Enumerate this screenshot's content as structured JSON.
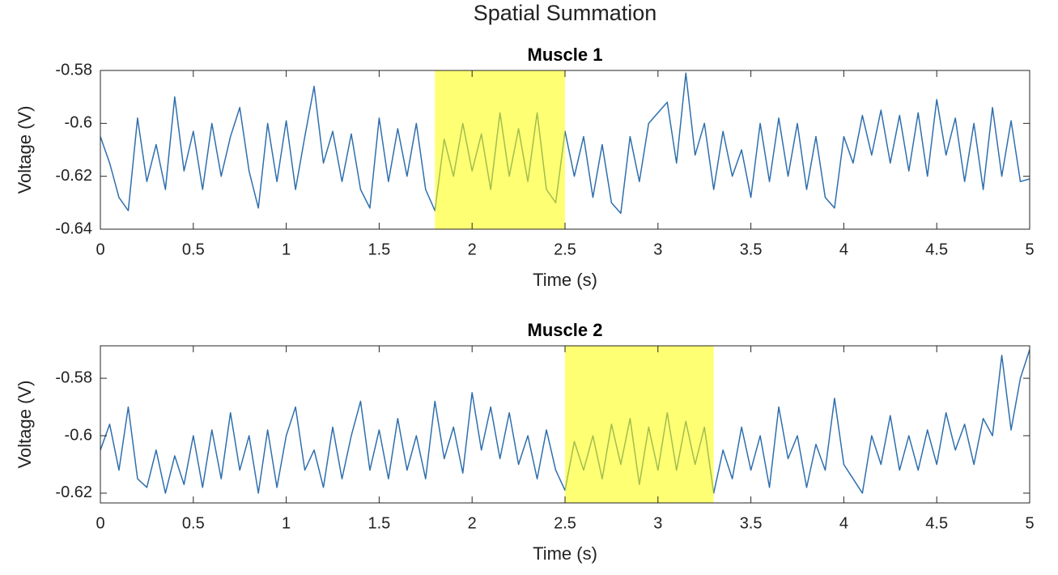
{
  "title": "Spatial Summation",
  "chart_data": [
    {
      "type": "line",
      "title": "Muscle 1",
      "xlabel": "Time (s)",
      "ylabel": "Voltage (V)",
      "xlim": [
        0,
        5
      ],
      "xticks": [
        0,
        0.5,
        1,
        1.5,
        2,
        2.5,
        3,
        3.5,
        4,
        4.5,
        5
      ],
      "ylim": [
        -0.64,
        -0.58
      ],
      "yticks": [
        -0.64,
        -0.62,
        -0.6,
        -0.58
      ],
      "highlight": [
        1.8,
        2.5
      ],
      "highlight_color": "#ffff00",
      "x": [
        0,
        0.05,
        0.1,
        0.15,
        0.2,
        0.25,
        0.3,
        0.35,
        0.4,
        0.45,
        0.5,
        0.55,
        0.6,
        0.65,
        0.7,
        0.75,
        0.8,
        0.85,
        0.9,
        0.95,
        1,
        1.05,
        1.1,
        1.15,
        1.2,
        1.25,
        1.3,
        1.35,
        1.4,
        1.45,
        1.5,
        1.55,
        1.6,
        1.65,
        1.7,
        1.75,
        1.8,
        1.85,
        1.9,
        1.95,
        2,
        2.05,
        2.1,
        2.15,
        2.2,
        2.25,
        2.3,
        2.35,
        2.4,
        2.45,
        2.5,
        2.55,
        2.6,
        2.65,
        2.7,
        2.75,
        2.8,
        2.85,
        2.9,
        2.95,
        3,
        3.05,
        3.1,
        3.15,
        3.2,
        3.25,
        3.3,
        3.35,
        3.4,
        3.45,
        3.5,
        3.55,
        3.6,
        3.65,
        3.7,
        3.75,
        3.8,
        3.85,
        3.9,
        3.95,
        4,
        4.05,
        4.1,
        4.15,
        4.2,
        4.25,
        4.3,
        4.35,
        4.4,
        4.45,
        4.5,
        4.55,
        4.6,
        4.65,
        4.7,
        4.75,
        4.8,
        4.85,
        4.9,
        4.95,
        5
      ],
      "series": [
        {
          "color": "#2f6fad",
          "values": [
            -0.605,
            -0.615,
            -0.628,
            -0.633,
            -0.598,
            -0.622,
            -0.608,
            -0.625,
            -0.59,
            -0.618,
            -0.603,
            -0.625,
            -0.6,
            -0.62,
            -0.605,
            -0.594,
            -0.618,
            -0.632,
            -0.6,
            -0.622,
            -0.599,
            -0.625,
            -0.605,
            -0.586,
            -0.615,
            -0.603,
            -0.622,
            -0.604,
            -0.625,
            -0.632,
            -0.598,
            -0.622,
            -0.602,
            -0.62,
            -0.6,
            -0.625,
            -0.633,
            -0.606,
            -0.62,
            -0.6,
            -0.618,
            -0.604,
            -0.625,
            -0.596,
            -0.62,
            -0.602,
            -0.622,
            -0.596,
            -0.625,
            -0.63,
            -0.603,
            -0.62,
            -0.605,
            -0.628,
            -0.608,
            -0.63,
            -0.634,
            -0.605,
            -0.622,
            -0.6,
            -0.596,
            -0.592,
            -0.615,
            -0.581,
            -0.612,
            -0.6,
            -0.625,
            -0.603,
            -0.62,
            -0.61,
            -0.628,
            -0.6,
            -0.622,
            -0.598,
            -0.62,
            -0.6,
            -0.625,
            -0.605,
            -0.628,
            -0.632,
            -0.605,
            -0.615,
            -0.597,
            -0.612,
            -0.595,
            -0.615,
            -0.597,
            -0.618,
            -0.596,
            -0.62,
            -0.591,
            -0.612,
            -0.598,
            -0.622,
            -0.6,
            -0.625,
            -0.594,
            -0.62,
            -0.599,
            -0.622,
            -0.621
          ]
        }
      ]
    },
    {
      "type": "line",
      "title": "Muscle 2",
      "xlabel": "Time (s)",
      "ylabel": "Voltage (V)",
      "xlim": [
        0,
        5
      ],
      "xticks": [
        0,
        0.5,
        1,
        1.5,
        2,
        2.5,
        3,
        3.5,
        4,
        4.5,
        5
      ],
      "ylim": [
        -0.6234,
        -0.5687
      ],
      "yticks": [
        -0.62,
        -0.6,
        -0.58
      ],
      "highlight": [
        2.5,
        3.3
      ],
      "highlight_color": "#ffff00",
      "x": [
        0,
        0.05,
        0.1,
        0.15,
        0.2,
        0.25,
        0.3,
        0.35,
        0.4,
        0.45,
        0.5,
        0.55,
        0.6,
        0.65,
        0.7,
        0.75,
        0.8,
        0.85,
        0.9,
        0.95,
        1,
        1.05,
        1.1,
        1.15,
        1.2,
        1.25,
        1.3,
        1.35,
        1.4,
        1.45,
        1.5,
        1.55,
        1.6,
        1.65,
        1.7,
        1.75,
        1.8,
        1.85,
        1.9,
        1.95,
        2,
        2.05,
        2.1,
        2.15,
        2.2,
        2.25,
        2.3,
        2.35,
        2.4,
        2.45,
        2.5,
        2.55,
        2.6,
        2.65,
        2.7,
        2.75,
        2.8,
        2.85,
        2.9,
        2.95,
        3,
        3.05,
        3.1,
        3.15,
        3.2,
        3.25,
        3.3,
        3.35,
        3.4,
        3.45,
        3.5,
        3.55,
        3.6,
        3.65,
        3.7,
        3.75,
        3.8,
        3.85,
        3.9,
        3.95,
        4,
        4.05,
        4.1,
        4.15,
        4.2,
        4.25,
        4.3,
        4.35,
        4.4,
        4.45,
        4.5,
        4.55,
        4.6,
        4.65,
        4.7,
        4.75,
        4.8,
        4.85,
        4.9,
        4.95,
        5
      ],
      "series": [
        {
          "color": "#2f6fad",
          "values": [
            -0.605,
            -0.596,
            -0.612,
            -0.59,
            -0.615,
            -0.618,
            -0.605,
            -0.62,
            -0.607,
            -0.617,
            -0.6,
            -0.618,
            -0.598,
            -0.615,
            -0.592,
            -0.612,
            -0.6,
            -0.62,
            -0.598,
            -0.618,
            -0.6,
            -0.59,
            -0.612,
            -0.605,
            -0.618,
            -0.597,
            -0.615,
            -0.6,
            -0.588,
            -0.612,
            -0.598,
            -0.615,
            -0.594,
            -0.612,
            -0.6,
            -0.615,
            -0.588,
            -0.608,
            -0.597,
            -0.613,
            -0.585,
            -0.605,
            -0.59,
            -0.608,
            -0.592,
            -0.61,
            -0.6,
            -0.615,
            -0.598,
            -0.612,
            -0.619,
            -0.602,
            -0.612,
            -0.6,
            -0.615,
            -0.596,
            -0.61,
            -0.594,
            -0.617,
            -0.597,
            -0.612,
            -0.592,
            -0.612,
            -0.595,
            -0.61,
            -0.597,
            -0.62,
            -0.605,
            -0.615,
            -0.597,
            -0.612,
            -0.6,
            -0.618,
            -0.59,
            -0.608,
            -0.6,
            -0.618,
            -0.603,
            -0.612,
            -0.587,
            -0.61,
            -0.615,
            -0.62,
            -0.6,
            -0.61,
            -0.593,
            -0.612,
            -0.6,
            -0.612,
            -0.598,
            -0.61,
            -0.592,
            -0.605,
            -0.596,
            -0.61,
            -0.594,
            -0.6,
            -0.572,
            -0.598,
            -0.58,
            -0.57
          ]
        }
      ]
    }
  ]
}
